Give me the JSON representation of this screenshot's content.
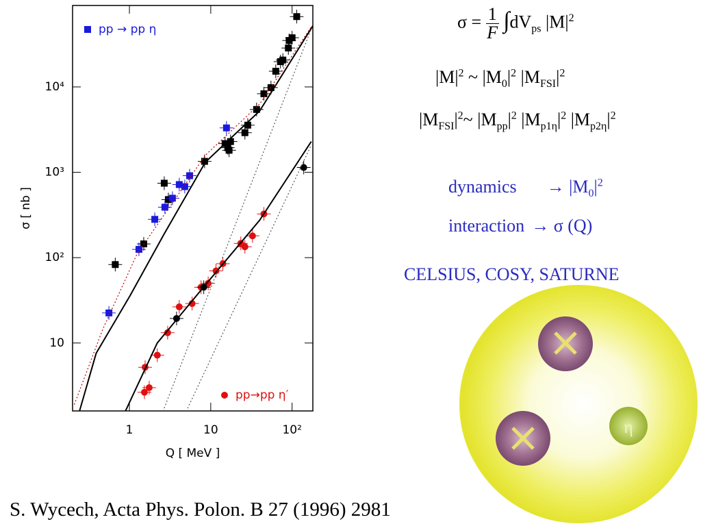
{
  "chart_data": {
    "type": "scatter",
    "log_x": true,
    "log_y": true,
    "xlabel": "Q [ MeV ]",
    "ylabel": "σ [ nb ]",
    "xlim": [
      0.2,
      180
    ],
    "ylim": [
      1.6,
      90000
    ],
    "xticks": [
      1,
      10,
      {
        "value": 100,
        "label": "10²"
      }
    ],
    "yticks": [
      10,
      {
        "value": 100,
        "label": "10²"
      },
      {
        "value": 1000,
        "label": "10³"
      },
      {
        "value": 10000,
        "label": "10⁴"
      }
    ],
    "series": [
      {
        "color": "#000000",
        "marker": "square",
        "x": [
          0.67,
          1.5,
          2.68,
          3.01,
          8.4,
          15,
          16.2,
          16.8,
          17.5,
          26.3,
          28.5,
          36.6,
          45,
          55,
          63,
          72,
          77,
          90,
          92,
          100,
          114
        ],
        "values": [
          83,
          145,
          745,
          479,
          1343,
          2168,
          1941,
          1811,
          2291,
          2911,
          3565,
          5445,
          8318,
          9817,
          15276,
          19770,
          20650,
          28576,
          35000,
          37670,
          66680
        ]
      },
      {
        "name": "pp → pp η",
        "color": "#1a1adc",
        "marker": "square",
        "x": [
          0.56,
          1.31,
          2.05,
          2.73,
          3.38,
          4.1,
          4.79,
          5.5,
          15.6
        ],
        "values": [
          22.5,
          125,
          281,
          390,
          497,
          718,
          679,
          912,
          3311
        ]
      },
      {
        "name": "pp→pp η′",
        "color": "#e01010",
        "marker": "circle",
        "x": [
          1.56,
          1.53,
          1.75,
          2.2,
          2.95,
          4.1,
          5.9,
          7.6,
          9.3,
          11.6,
          14.1,
          23.4,
          26.3,
          32.6,
          45
        ],
        "values": [
          5.2,
          2.65,
          3.0,
          7.2,
          13.2,
          26.5,
          29,
          45,
          50,
          70,
          85,
          147,
          134,
          180,
          325
        ]
      },
      {
        "color": "#000000",
        "marker": "circle",
        "x": [
          3.8,
          8.2,
          139
        ],
        "values": [
          19.4,
          45,
          1138
        ]
      },
      {
        "color": "#000000",
        "line": "solid",
        "x": [
          0.243,
          0.39,
          1.02,
          2.68,
          8.6,
          40,
          180
        ],
        "values": [
          1.58,
          7.6,
          36,
          190,
          1318,
          5248,
          52000
        ]
      },
      {
        "color": "#c00000",
        "line": "dotted",
        "x": [
          0.21,
          0.47,
          1.24,
          8.6,
          40,
          172
        ],
        "values": [
          1.9,
          14.5,
          110,
          1585,
          6310,
          50600
        ]
      },
      {
        "color": "#000000",
        "line": "solid",
        "x": [
          0.89,
          2.2,
          8.6,
          40,
          172
        ],
        "values": [
          1.58,
          10,
          48,
          275,
          2290
        ]
      },
      {
        "color": "#555555",
        "line": "dotted",
        "x": [
          2.58,
          172
        ],
        "values": [
          1.58,
          47900
        ]
      },
      {
        "color": "#555555",
        "line": "dotted",
        "x": [
          4.98,
          172
        ],
        "values": [
          1.58,
          2090
        ]
      }
    ]
  },
  "formulas": [
    [
      "σ =",
      "1",
      "F",
      "∫",
      "dV",
      "ps",
      " |M|",
      "2"
    ],
    [
      "|M|",
      "2",
      " ~ |M",
      "0",
      "|",
      "2",
      " |M",
      "FSI",
      "|",
      "2"
    ],
    [
      "|M",
      "FSI",
      "|",
      "2",
      "~ |M",
      "pp",
      "|",
      "2",
      " |M",
      "p1η",
      "|",
      "2",
      "  |M",
      "p2η",
      "|",
      "2"
    ],
    [
      "dynamics",
      "→ |M",
      "0",
      "|",
      "2"
    ],
    [
      "interaction",
      "→ σ (Q)"
    ]
  ],
  "experiments": "CELSIUS, COSY, SATURNE",
  "meson_label": "η",
  "citation": "S. Wycech, Acta Phys. Polon.  B 27 (1996)  2981"
}
